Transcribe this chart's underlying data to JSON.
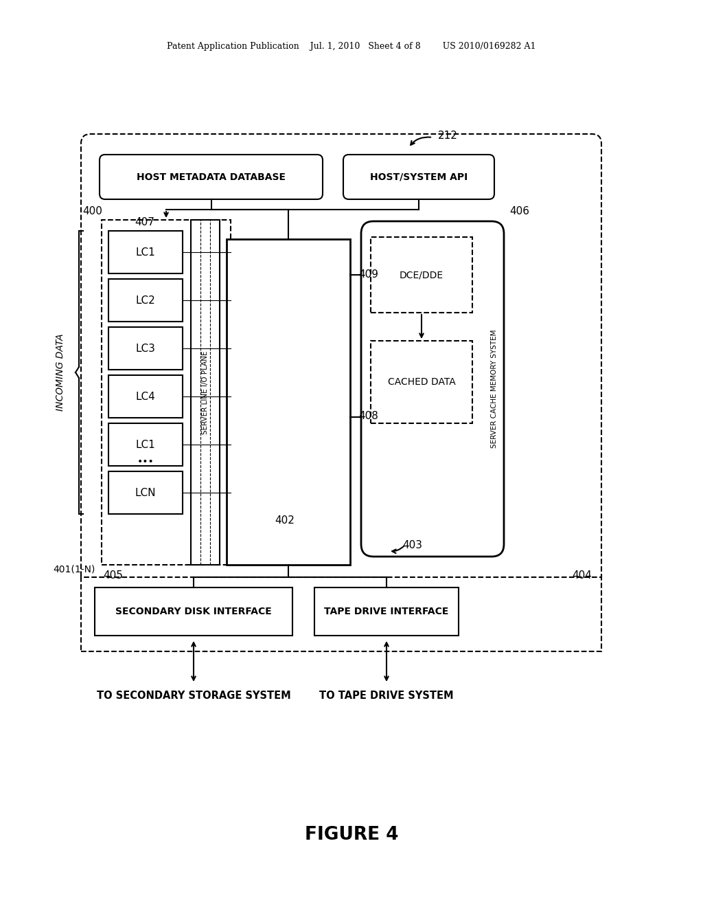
{
  "header": "Patent Application Publication    Jul. 1, 2010   Sheet 4 of 8        US 2010/0169282 A1",
  "figure_label": "FIGURE 4",
  "lc_labels": [
    "LC1",
    "LC2",
    "LC3",
    "LC4",
    "LC1",
    "LCN"
  ],
  "label_212": "212",
  "label_400": "400",
  "label_401": "401(1-N)",
  "label_402": "402",
  "label_403": "403",
  "label_404": "404",
  "label_405": "405",
  "label_406": "406",
  "label_407": "407",
  "label_408": "408",
  "label_409": "409",
  "box_host_metadata": "HOST METADATA DATABASE",
  "box_host_api": "HOST/SYSTEM API",
  "box_secondary_disk": "SECONDARY DISK INTERFACE",
  "box_tape_drive": "TAPE DRIVE INTERFACE",
  "box_server_line": "SERVER LINE I/O PLANE",
  "box_server_cache": "SERVER CACHE MEMORY SYSTEM",
  "box_dce_dde": "DCE/DDE",
  "box_cached_data": "CACHED DATA",
  "text_incoming_data": "INCOMING DATA",
  "text_to_secondary": "TO SECONDARY STORAGE SYSTEM",
  "text_to_tape": "TO TAPE DRIVE SYSTEM"
}
